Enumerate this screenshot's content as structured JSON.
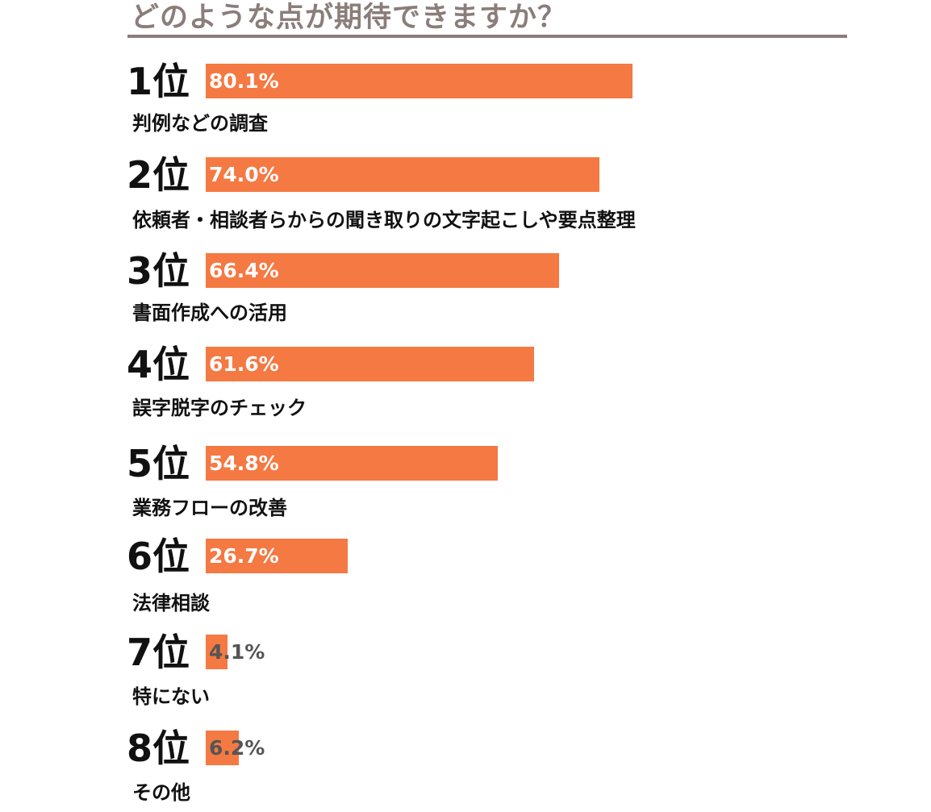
{
  "title": "どのような点が期待できますか？",
  "colors": {
    "bar": "#f47942",
    "title": "#8a7d7a",
    "text": "#111111"
  },
  "chart_data": {
    "type": "bar",
    "orientation": "horizontal",
    "title": "どのような点が期待できますか？",
    "categories": [
      "判例などの調査",
      "依頼者・相談者らからの聞き取りの文字起こしや要点整理",
      "書面作成への活用",
      "誤字脱字のチェック",
      "業務フローの改善",
      "法律相談",
      "特にない",
      "その他"
    ],
    "ranks": [
      "1位",
      "2位",
      "3位",
      "4位",
      "5位",
      "6位",
      "7位",
      "8位"
    ],
    "values": [
      80.1,
      74.0,
      66.4,
      61.6,
      54.8,
      26.7,
      4.1,
      6.2
    ],
    "value_labels": [
      "80.1%",
      "74.0%",
      "66.4%",
      "61.6%",
      "54.8%",
      "26.7%",
      "4.1%",
      "6.2%"
    ],
    "unit": "%",
    "xlim": [
      0,
      100
    ]
  }
}
